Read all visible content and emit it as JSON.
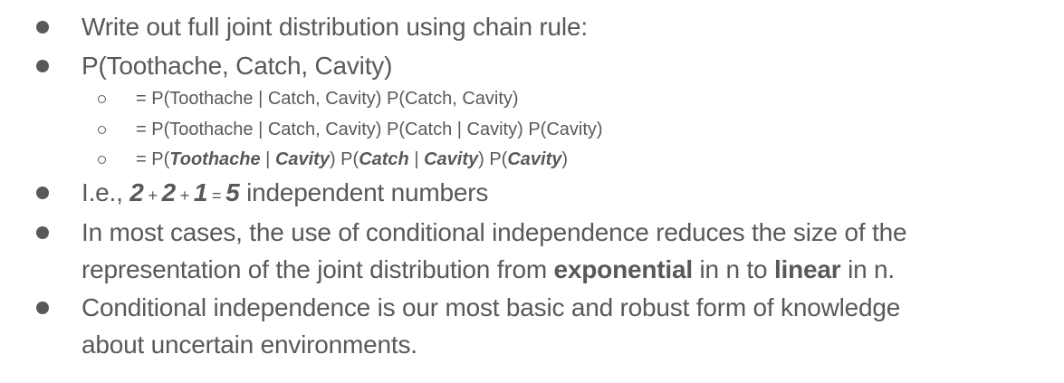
{
  "bullets": {
    "b1": "Write out full joint distribution using chain rule:",
    "b2": "P(Toothache, Catch, Cavity)",
    "sub1": "= P(Toothache | Catch, Cavity) P(Catch, Cavity)",
    "sub2": "= P(Toothache | Catch, Cavity) P(Catch | Cavity) P(Cavity)",
    "sub3": {
      "p1": "= P(",
      "toothache": "Toothache",
      "bar1": " | ",
      "cavity1": "Cavity",
      "p2": ") P(",
      "catch": "Catch",
      "bar2": " | ",
      "cavity2": "Cavity",
      "p3": ") P(",
      "cavity3": "Cavity",
      "p4": ")"
    },
    "b3": {
      "prefix": "I.e., ",
      "n1": "2",
      "plus1": " + ",
      "n2": "2",
      "plus2": " + ",
      "n3": "1",
      "eq": " = ",
      "n4": "5",
      "suffix": " independent numbers"
    },
    "b4": {
      "line1": "In most cases, the use of conditional independence reduces the size of the",
      "line2_pre": "representation of the joint distribution from ",
      "exponential": "exponential",
      "mid": " in n to ",
      "linear": "linear",
      "post": " in n."
    },
    "b5": {
      "line1": "Conditional independence is our most basic and robust form of knowledge",
      "line2": "about uncertain environments."
    }
  }
}
